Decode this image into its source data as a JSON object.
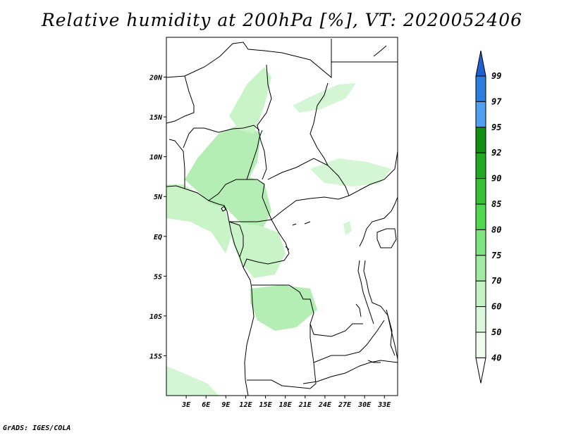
{
  "title": "Relative humidity at 200hPa [%], VT: 2020052406",
  "credit": "GrADS: IGES/COLA",
  "map": {
    "lon_range": [
      0,
      35
    ],
    "lat_range": [
      -20,
      25
    ],
    "x_ticks": [
      "3E",
      "6E",
      "9E",
      "12E",
      "15E",
      "18E",
      "21E",
      "24E",
      "27E",
      "30E",
      "33E"
    ],
    "y_ticks": [
      "20N",
      "15N",
      "10N",
      "5N",
      "EQ",
      "5S",
      "10S",
      "15S"
    ]
  },
  "colorbar": {
    "levels": [
      "99",
      "97",
      "95",
      "92",
      "90",
      "85",
      "80",
      "75",
      "70",
      "60",
      "50",
      "40"
    ],
    "colors": [
      "#1e60d0",
      "#2b7de0",
      "#4fa0f0",
      "#129012",
      "#22a822",
      "#38c038",
      "#50d850",
      "#7ee47e",
      "#a2eca2",
      "#c4f4c4",
      "#dcf8dc",
      "#f0fcf0"
    ]
  }
}
